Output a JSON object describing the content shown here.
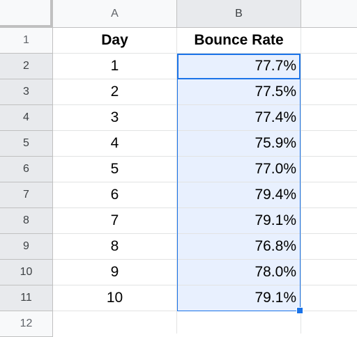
{
  "columns": [
    "A",
    "B"
  ],
  "rows": [
    "1",
    "2",
    "3",
    "4",
    "5",
    "6",
    "7",
    "8",
    "9",
    "10",
    "11",
    "12"
  ],
  "header": {
    "day": "Day",
    "bounce_rate": "Bounce Rate"
  },
  "data": [
    {
      "day": "1",
      "rate": "77.7%"
    },
    {
      "day": "2",
      "rate": "77.5%"
    },
    {
      "day": "3",
      "rate": "77.4%"
    },
    {
      "day": "4",
      "rate": "75.9%"
    },
    {
      "day": "5",
      "rate": "77.0%"
    },
    {
      "day": "6",
      "rate": "79.4%"
    },
    {
      "day": "7",
      "rate": "79.1%"
    },
    {
      "day": "8",
      "rate": "76.8%"
    },
    {
      "day": "9",
      "rate": "78.0%"
    },
    {
      "day": "10",
      "rate": "79.1%"
    }
  ],
  "selection": {
    "range": "B2:B11",
    "active_cell": "B2",
    "color": "#1a73e8",
    "fill": "#e8f0fe"
  }
}
